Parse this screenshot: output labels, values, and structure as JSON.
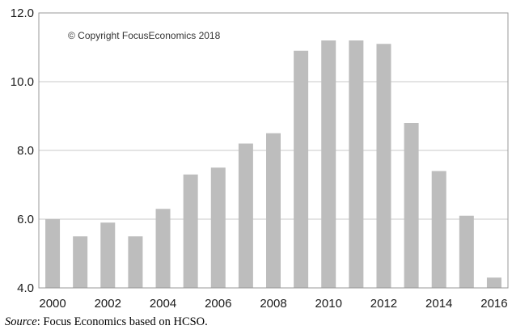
{
  "chart_data": {
    "type": "bar",
    "title": "",
    "xlabel": "",
    "ylabel": "",
    "categories": [
      "2000",
      "2001",
      "2002",
      "2003",
      "2004",
      "2005",
      "2006",
      "2007",
      "2008",
      "2009",
      "2010",
      "2011",
      "2012",
      "2013",
      "2014",
      "2015",
      "2016"
    ],
    "values": [
      6.0,
      5.5,
      5.9,
      5.5,
      6.3,
      7.3,
      7.5,
      8.2,
      8.5,
      10.9,
      11.2,
      11.2,
      11.1,
      8.8,
      7.4,
      6.1,
      4.3
    ],
    "x_tick_labels": [
      "2000",
      "2002",
      "2004",
      "2006",
      "2008",
      "2010",
      "2012",
      "2014",
      "2016"
    ],
    "y_tick_labels": [
      "4.0",
      "6.0",
      "8.0",
      "10.0",
      "12.0"
    ],
    "ylim": [
      4.0,
      12.0
    ],
    "grid": true,
    "legend": "none",
    "bar_color": "#bdbdbd",
    "grid_color": "#c8c8c8",
    "annotation": "© Copyright FocusEconomics  2018"
  },
  "source": {
    "label": "Source",
    "text": ": Focus Economics based on HCSO."
  }
}
